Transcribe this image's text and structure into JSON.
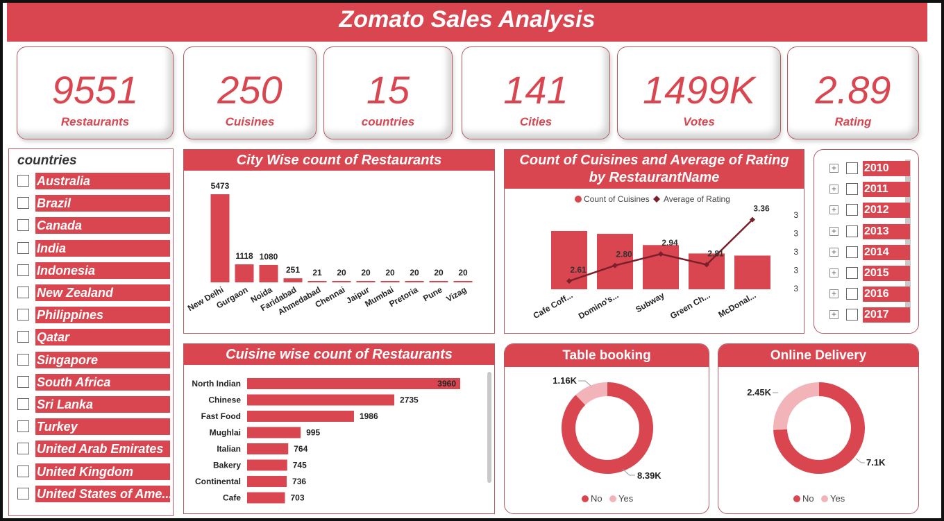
{
  "header": {
    "title": "Zomato Sales Analysis"
  },
  "kpis": [
    {
      "value": "9551",
      "label": "Restaurants"
    },
    {
      "value": "250",
      "label": "Cuisines"
    },
    {
      "value": "15",
      "label": "countries"
    },
    {
      "value": "141",
      "label": "Cities"
    },
    {
      "value": "1499K",
      "label": "Votes"
    },
    {
      "value": "2.89",
      "label": "Rating"
    }
  ],
  "countries_slicer": {
    "title": "countries",
    "items": [
      "Australia",
      "Brazil",
      "Canada",
      "India",
      "Indonesia",
      "New Zealand",
      "Philippines",
      "Qatar",
      "Singapore",
      "South Africa",
      "Sri Lanka",
      "Turkey",
      "United Arab Emirates",
      "United Kingdom",
      "United States of Ame..."
    ]
  },
  "year_slicer": {
    "items": [
      "2010",
      "2011",
      "2012",
      "2013",
      "2014",
      "2015",
      "2016",
      "2017"
    ]
  },
  "colors": {
    "accent": "#d94650",
    "line": "#7b1f2a",
    "light": "#f2b4b8"
  },
  "chart_data": [
    {
      "type": "bar",
      "title": "City Wise count of Restaurants",
      "categories": [
        "New Delhi",
        "Gurgaon",
        "Noida",
        "Faridabad",
        "Ahmedabad",
        "Chennai",
        "Jaipur",
        "Mumbai",
        "Pretoria",
        "Pune",
        "Vizag"
      ],
      "values": [
        5473,
        1118,
        1080,
        251,
        21,
        20,
        20,
        20,
        20,
        20,
        20
      ],
      "ylim": [
        0,
        5473
      ]
    },
    {
      "type": "bar",
      "title": "Count of Cuisines and Average of Rating by RestaurantName",
      "legend": [
        "Count of Cuisines",
        "Average of Rating"
      ],
      "categories": [
        "Cafe Coff...",
        "Domino's...",
        "Subway",
        "Green Ch...",
        "McDonal..."
      ],
      "series": [
        {
          "name": "Count of Cuisines",
          "type": "bar",
          "values": [
            83,
            79,
            63,
            51,
            48
          ]
        },
        {
          "name": "Average of Rating",
          "type": "line",
          "values": [
            2.61,
            2.8,
            2.94,
            2.81,
            3.36
          ]
        }
      ],
      "rating_labels": [
        "2.61",
        "2.80",
        "2.94",
        "2.81",
        "3.36"
      ],
      "right_axis_ticks": [
        "3",
        "3",
        "3",
        "3",
        "3"
      ]
    },
    {
      "type": "bar",
      "orientation": "horizontal",
      "title": "Cuisine wise count of Restaurants",
      "categories": [
        "North Indian",
        "Chinese",
        "Fast Food",
        "Mughlai",
        "Italian",
        "Bakery",
        "Continental",
        "Cafe"
      ],
      "values": [
        3960,
        2735,
        1986,
        995,
        764,
        745,
        736,
        703
      ],
      "xlim": [
        0,
        3960
      ]
    },
    {
      "type": "pie",
      "title": "Table booking",
      "categories": [
        "No",
        "Yes"
      ],
      "values": [
        8390,
        1160
      ],
      "labels": [
        "8.39K",
        "1.16K"
      ]
    },
    {
      "type": "pie",
      "title": "Online Delivery",
      "categories": [
        "No",
        "Yes"
      ],
      "values": [
        7100,
        2450
      ],
      "labels": [
        "7.1K",
        "2.45K"
      ]
    }
  ]
}
